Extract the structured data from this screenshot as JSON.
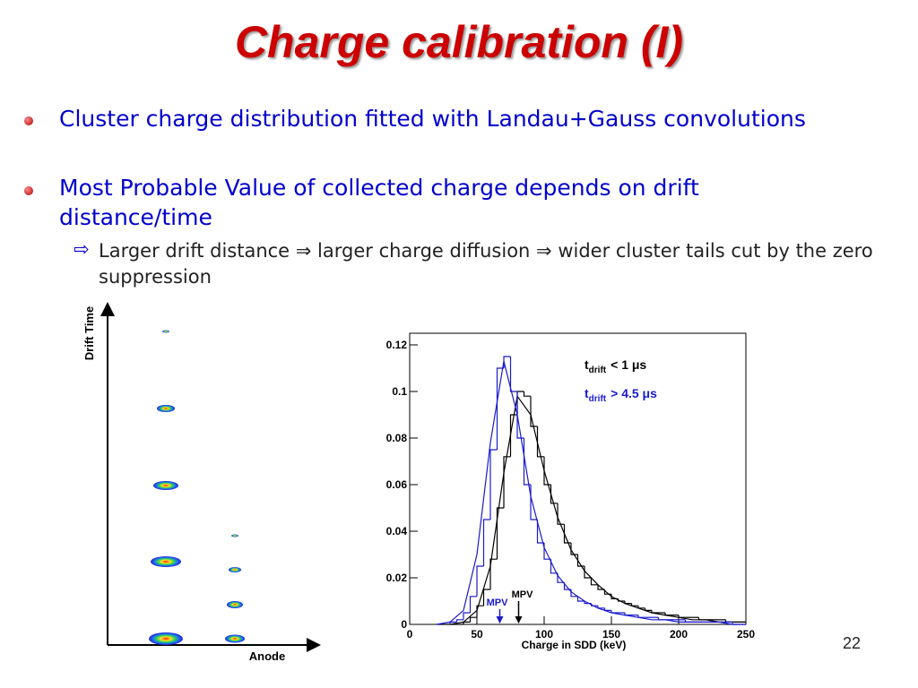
{
  "slide": {
    "title": "Charge calibration (I)",
    "bullets": [
      "Cluster charge distribution fitted with Landau+Gauss convolutions",
      "Most Probable Value of collected charge depends on drift distance/time"
    ],
    "sub_bullet": "Larger drift distance ⇒ larger charge diffusion ⇒ wider cluster tails cut by the zero suppression",
    "page_number": "22",
    "diagram": {
      "y_label": "Drift Time",
      "x_label": "Anode"
    }
  },
  "chart_data": {
    "type": "histogram",
    "x_label": "Charge in SDD (keV)",
    "xlim": [
      0,
      250
    ],
    "xticks": [
      0,
      50,
      100,
      150,
      200,
      250
    ],
    "ylim": [
      0,
      0.125
    ],
    "yticks": [
      0,
      0.02,
      0.04,
      0.06,
      0.08,
      0.1,
      0.12
    ],
    "bins": [
      30,
      35,
      40,
      45,
      50,
      55,
      60,
      65,
      70,
      75,
      80,
      85,
      90,
      95,
      100,
      105,
      110,
      115,
      120,
      125,
      130,
      135,
      140,
      145,
      150,
      155,
      160,
      165,
      170,
      175,
      180,
      185,
      190,
      195,
      200,
      205,
      210,
      215,
      220,
      225,
      230,
      235,
      240,
      245,
      250
    ],
    "fit_x": [
      20,
      30,
      40,
      50,
      60,
      70,
      80,
      90,
      100,
      110,
      120,
      130,
      140,
      150,
      160,
      170,
      180,
      190,
      200,
      210,
      220,
      230,
      240,
      250
    ],
    "series": [
      {
        "name": "t",
        "name_sub": "drift",
        "name_rest": "< 1 μs",
        "color": "#000000",
        "values": [
          0,
          0,
          0.001,
          0.003,
          0.008,
          0.015,
          0.028,
          0.05,
          0.072,
          0.09,
          0.1,
          0.098,
          0.085,
          0.072,
          0.06,
          0.052,
          0.043,
          0.035,
          0.03,
          0.025,
          0.02,
          0.017,
          0.015,
          0.013,
          0.011,
          0.01,
          0.009,
          0.008,
          0.007,
          0.006,
          0.005,
          0.005,
          0.004,
          0.004,
          0.003,
          0.003,
          0.003,
          0.002,
          0.002,
          0.002,
          0.002,
          0.001,
          0.001,
          0.001
        ],
        "fit": [
          0,
          0,
          0.001,
          0.006,
          0.025,
          0.065,
          0.098,
          0.09,
          0.066,
          0.046,
          0.032,
          0.023,
          0.017,
          0.012,
          0.009,
          0.007,
          0.005,
          0.004,
          0.003,
          0.002,
          0.002,
          0.001,
          0.001,
          0.001
        ]
      },
      {
        "name": "t",
        "name_sub": "drift",
        "name_rest": "> 4.5 μs",
        "color": "#1a1acc",
        "values": [
          0.001,
          0.002,
          0.005,
          0.012,
          0.025,
          0.045,
          0.075,
          0.11,
          0.115,
          0.1,
          0.08,
          0.06,
          0.045,
          0.035,
          0.028,
          0.022,
          0.018,
          0.015,
          0.012,
          0.01,
          0.009,
          0.008,
          0.007,
          0.006,
          0.005,
          0.005,
          0.004,
          0.004,
          0.003,
          0.003,
          0.003,
          0.002,
          0.002,
          0.002,
          0.002,
          0.001,
          0.001,
          0.001,
          0.001,
          0.001,
          0.001,
          0.001,
          0,
          0
        ],
        "fit": [
          0,
          0.001,
          0.006,
          0.03,
          0.078,
          0.113,
          0.09,
          0.055,
          0.033,
          0.021,
          0.014,
          0.01,
          0.007,
          0.005,
          0.004,
          0.003,
          0.002,
          0.002,
          0.001,
          0.001,
          0.001,
          0.001,
          0,
          0
        ]
      }
    ],
    "annotations": [
      {
        "text": "MPV",
        "x": 67,
        "color": "#1a1acc"
      },
      {
        "text": "MPV",
        "x": 81,
        "color": "#000000"
      }
    ]
  }
}
